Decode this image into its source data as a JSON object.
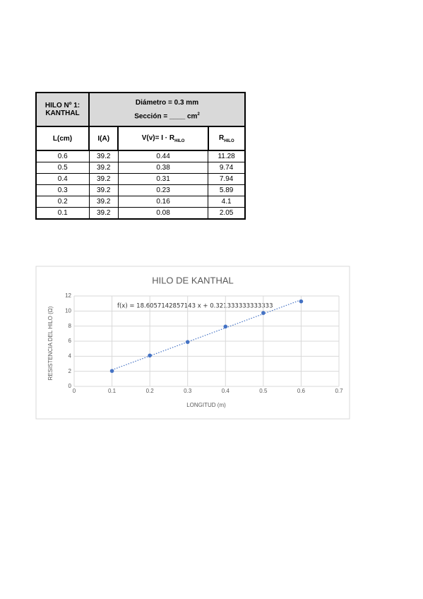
{
  "table": {
    "title": [
      "HILO Nº 1:",
      "KANTHAL"
    ],
    "diameter": "Diámetro = 0.3 mm",
    "section": {
      "main": "Sección = ____ cm",
      "sup": "2"
    },
    "columns": [
      {
        "main": "L(cm)"
      },
      {
        "main": "I(A)"
      },
      {
        "main": "V(v)= I · R",
        "sub": "HILO"
      },
      {
        "main": "R",
        "sub": "HILO"
      }
    ],
    "rows": [
      [
        "0.6",
        "39.2",
        "0.44",
        "11.28"
      ],
      [
        "0.5",
        "39.2",
        "0.38",
        "9.74"
      ],
      [
        "0.4",
        "39.2",
        "0.31",
        "7.94"
      ],
      [
        "0.3",
        "39.2",
        "0.23",
        "5.89"
      ],
      [
        "0.2",
        "39.2",
        "0.16",
        "4.1"
      ],
      [
        "0.1",
        "39.2",
        "0.08",
        "2.05"
      ]
    ]
  },
  "chart_data": {
    "type": "scatter",
    "title": "HILO DE KANTHAL",
    "x_label": "LONGITUD (m)",
    "y_label": "RESISTENCIA DEL HILO (Ω)",
    "equation": "f(x) = 18.6057142857143 x + 0.321333333333333",
    "x": [
      0.1,
      0.2,
      0.3,
      0.4,
      0.5,
      0.6
    ],
    "values": [
      2.05,
      4.1,
      5.89,
      7.94,
      9.74,
      11.28
    ],
    "color": "#4472c4",
    "trendline": true,
    "grid": true,
    "xlim": [
      0,
      0.7
    ],
    "xticks": [
      0,
      0.1,
      0.2,
      0.3,
      0.4,
      0.5,
      0.6,
      0.7
    ],
    "ylim": [
      0,
      12
    ],
    "yticks": [
      0,
      2,
      4,
      6,
      8,
      10,
      12
    ]
  }
}
